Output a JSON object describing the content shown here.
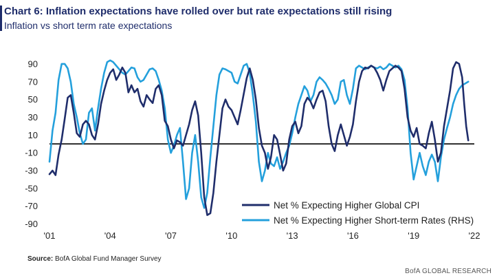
{
  "chart_data": {
    "type": "line",
    "title": "Chart 6: Inflation expectations have rolled over but rate expectations still rising",
    "subtitle": "Inflation vs short term rate expectations",
    "x_tick_labels": [
      "'01",
      "'04",
      "'07",
      "'10",
      "'13",
      "'16",
      "'19",
      "'22"
    ],
    "x_ticks": [
      2001,
      2004,
      2007,
      2010,
      2013,
      2016,
      2019,
      2022
    ],
    "xlim": [
      2001,
      2022
    ],
    "y_ticks": [
      90,
      70,
      50,
      30,
      10,
      -10,
      -30,
      -50,
      -70,
      -90
    ],
    "ylim": [
      -95,
      100
    ],
    "zero_line": 0,
    "legend_position": "bottom-right",
    "series": [
      {
        "name": "Net % Expecting Higher Global CPI",
        "color": "#1f2d6b",
        "points": [
          [
            2001.0,
            -34
          ],
          [
            2001.15,
            -30
          ],
          [
            2001.3,
            -35
          ],
          [
            2001.45,
            -12
          ],
          [
            2001.6,
            5
          ],
          [
            2001.75,
            28
          ],
          [
            2001.9,
            52
          ],
          [
            2002.05,
            55
          ],
          [
            2002.2,
            35
          ],
          [
            2002.35,
            12
          ],
          [
            2002.5,
            8
          ],
          [
            2002.65,
            22
          ],
          [
            2002.8,
            26
          ],
          [
            2002.95,
            22
          ],
          [
            2003.1,
            10
          ],
          [
            2003.25,
            5
          ],
          [
            2003.4,
            22
          ],
          [
            2003.55,
            45
          ],
          [
            2003.7,
            60
          ],
          [
            2003.85,
            72
          ],
          [
            2004.0,
            80
          ],
          [
            2004.15,
            84
          ],
          [
            2004.3,
            72
          ],
          [
            2004.45,
            78
          ],
          [
            2004.6,
            86
          ],
          [
            2004.75,
            80
          ],
          [
            2004.9,
            58
          ],
          [
            2005.05,
            66
          ],
          [
            2005.2,
            58
          ],
          [
            2005.35,
            62
          ],
          [
            2005.5,
            48
          ],
          [
            2005.65,
            42
          ],
          [
            2005.8,
            55
          ],
          [
            2005.95,
            50
          ],
          [
            2006.1,
            46
          ],
          [
            2006.25,
            62
          ],
          [
            2006.4,
            66
          ],
          [
            2006.55,
            55
          ],
          [
            2006.7,
            26
          ],
          [
            2006.85,
            20
          ],
          [
            2007.0,
            5
          ],
          [
            2007.15,
            -5
          ],
          [
            2007.3,
            4
          ],
          [
            2007.45,
            2
          ],
          [
            2007.6,
            -2
          ],
          [
            2007.75,
            10
          ],
          [
            2007.9,
            22
          ],
          [
            2008.05,
            38
          ],
          [
            2008.2,
            48
          ],
          [
            2008.35,
            32
          ],
          [
            2008.5,
            -10
          ],
          [
            2008.65,
            -60
          ],
          [
            2008.8,
            -80
          ],
          [
            2008.95,
            -78
          ],
          [
            2009.1,
            -55
          ],
          [
            2009.25,
            -20
          ],
          [
            2009.4,
            10
          ],
          [
            2009.55,
            40
          ],
          [
            2009.7,
            50
          ],
          [
            2009.85,
            42
          ],
          [
            2010.0,
            38
          ],
          [
            2010.15,
            30
          ],
          [
            2010.3,
            22
          ],
          [
            2010.45,
            38
          ],
          [
            2010.6,
            56
          ],
          [
            2010.75,
            74
          ],
          [
            2010.9,
            85
          ],
          [
            2011.05,
            72
          ],
          [
            2011.2,
            50
          ],
          [
            2011.35,
            18
          ],
          [
            2011.5,
            -2
          ],
          [
            2011.65,
            -10
          ],
          [
            2011.8,
            -28
          ],
          [
            2011.95,
            -15
          ],
          [
            2012.1,
            10
          ],
          [
            2012.25,
            5
          ],
          [
            2012.4,
            -12
          ],
          [
            2012.55,
            -30
          ],
          [
            2012.7,
            -22
          ],
          [
            2012.85,
            5
          ],
          [
            2013.0,
            20
          ],
          [
            2013.15,
            25
          ],
          [
            2013.3,
            12
          ],
          [
            2013.45,
            20
          ],
          [
            2013.6,
            45
          ],
          [
            2013.75,
            52
          ],
          [
            2013.9,
            48
          ],
          [
            2014.05,
            40
          ],
          [
            2014.2,
            50
          ],
          [
            2014.35,
            58
          ],
          [
            2014.5,
            60
          ],
          [
            2014.65,
            48
          ],
          [
            2014.8,
            20
          ],
          [
            2014.95,
            0
          ],
          [
            2015.1,
            -8
          ],
          [
            2015.25,
            10
          ],
          [
            2015.4,
            22
          ],
          [
            2015.55,
            10
          ],
          [
            2015.7,
            -2
          ],
          [
            2015.85,
            8
          ],
          [
            2016.0,
            22
          ],
          [
            2016.15,
            48
          ],
          [
            2016.3,
            70
          ],
          [
            2016.45,
            82
          ],
          [
            2016.6,
            86
          ],
          [
            2016.75,
            85
          ],
          [
            2016.9,
            88
          ],
          [
            2017.05,
            86
          ],
          [
            2017.2,
            80
          ],
          [
            2017.35,
            72
          ],
          [
            2017.5,
            60
          ],
          [
            2017.65,
            72
          ],
          [
            2017.8,
            82
          ],
          [
            2017.95,
            85
          ],
          [
            2018.1,
            88
          ],
          [
            2018.25,
            86
          ],
          [
            2018.4,
            82
          ],
          [
            2018.55,
            62
          ],
          [
            2018.7,
            30
          ],
          [
            2018.85,
            15
          ],
          [
            2019.0,
            8
          ],
          [
            2019.15,
            18
          ],
          [
            2019.3,
            0
          ],
          [
            2019.45,
            -2
          ],
          [
            2019.6,
            -5
          ],
          [
            2019.75,
            12
          ],
          [
            2019.9,
            25
          ],
          [
            2020.05,
            5
          ],
          [
            2020.2,
            -20
          ],
          [
            2020.35,
            -10
          ],
          [
            2020.5,
            20
          ],
          [
            2020.65,
            40
          ],
          [
            2020.8,
            60
          ],
          [
            2020.95,
            85
          ],
          [
            2021.1,
            92
          ],
          [
            2021.25,
            90
          ],
          [
            2021.4,
            75
          ],
          [
            2021.5,
            45
          ],
          [
            2021.6,
            20
          ],
          [
            2021.7,
            4
          ]
        ]
      },
      {
        "name": "Net % Expecting Higher Short-term Rates (RHS)",
        "color": "#24a0dc",
        "points": [
          [
            2001.0,
            -20
          ],
          [
            2001.15,
            15
          ],
          [
            2001.3,
            35
          ],
          [
            2001.45,
            72
          ],
          [
            2001.6,
            90
          ],
          [
            2001.75,
            90
          ],
          [
            2001.9,
            85
          ],
          [
            2002.05,
            70
          ],
          [
            2002.2,
            45
          ],
          [
            2002.35,
            30
          ],
          [
            2002.5,
            12
          ],
          [
            2002.65,
            0
          ],
          [
            2002.8,
            5
          ],
          [
            2002.95,
            35
          ],
          [
            2003.1,
            40
          ],
          [
            2003.25,
            15
          ],
          [
            2003.4,
            40
          ],
          [
            2003.55,
            62
          ],
          [
            2003.7,
            80
          ],
          [
            2003.85,
            92
          ],
          [
            2004.0,
            94
          ],
          [
            2004.15,
            92
          ],
          [
            2004.3,
            88
          ],
          [
            2004.45,
            84
          ],
          [
            2004.6,
            80
          ],
          [
            2004.75,
            78
          ],
          [
            2004.9,
            82
          ],
          [
            2005.05,
            86
          ],
          [
            2005.2,
            85
          ],
          [
            2005.35,
            75
          ],
          [
            2005.5,
            70
          ],
          [
            2005.65,
            72
          ],
          [
            2005.8,
            78
          ],
          [
            2005.95,
            84
          ],
          [
            2006.1,
            85
          ],
          [
            2006.25,
            82
          ],
          [
            2006.4,
            72
          ],
          [
            2006.55,
            60
          ],
          [
            2006.7,
            40
          ],
          [
            2006.85,
            5
          ],
          [
            2007.0,
            -10
          ],
          [
            2007.15,
            -2
          ],
          [
            2007.3,
            10
          ],
          [
            2007.45,
            18
          ],
          [
            2007.6,
            -20
          ],
          [
            2007.75,
            -62
          ],
          [
            2007.9,
            -50
          ],
          [
            2008.05,
            -10
          ],
          [
            2008.2,
            10
          ],
          [
            2008.35,
            -20
          ],
          [
            2008.5,
            -60
          ],
          [
            2008.65,
            -72
          ],
          [
            2008.8,
            -55
          ],
          [
            2008.95,
            -15
          ],
          [
            2009.1,
            20
          ],
          [
            2009.25,
            55
          ],
          [
            2009.4,
            78
          ],
          [
            2009.55,
            85
          ],
          [
            2009.7,
            84
          ],
          [
            2009.85,
            82
          ],
          [
            2010.0,
            80
          ],
          [
            2010.15,
            70
          ],
          [
            2010.3,
            68
          ],
          [
            2010.45,
            78
          ],
          [
            2010.6,
            88
          ],
          [
            2010.75,
            90
          ],
          [
            2010.9,
            80
          ],
          [
            2011.05,
            55
          ],
          [
            2011.2,
            25
          ],
          [
            2011.35,
            -20
          ],
          [
            2011.5,
            -42
          ],
          [
            2011.65,
            -30
          ],
          [
            2011.8,
            -10
          ],
          [
            2011.95,
            -22
          ],
          [
            2012.1,
            -25
          ],
          [
            2012.25,
            -15
          ],
          [
            2012.4,
            -28
          ],
          [
            2012.55,
            -20
          ],
          [
            2012.7,
            -10
          ],
          [
            2012.85,
            -2
          ],
          [
            2013.0,
            12
          ],
          [
            2013.15,
            30
          ],
          [
            2013.3,
            45
          ],
          [
            2013.45,
            55
          ],
          [
            2013.6,
            65
          ],
          [
            2013.75,
            60
          ],
          [
            2013.9,
            48
          ],
          [
            2014.05,
            55
          ],
          [
            2014.2,
            70
          ],
          [
            2014.35,
            75
          ],
          [
            2014.5,
            72
          ],
          [
            2014.65,
            68
          ],
          [
            2014.8,
            62
          ],
          [
            2014.95,
            55
          ],
          [
            2015.1,
            45
          ],
          [
            2015.25,
            50
          ],
          [
            2015.4,
            70
          ],
          [
            2015.55,
            72
          ],
          [
            2015.7,
            55
          ],
          [
            2015.85,
            45
          ],
          [
            2016.0,
            62
          ],
          [
            2016.15,
            85
          ],
          [
            2016.3,
            88
          ],
          [
            2016.45,
            86
          ],
          [
            2016.6,
            84
          ],
          [
            2016.75,
            86
          ],
          [
            2016.9,
            88
          ],
          [
            2017.05,
            86
          ],
          [
            2017.2,
            85
          ],
          [
            2017.35,
            87
          ],
          [
            2017.5,
            84
          ],
          [
            2017.65,
            86
          ],
          [
            2017.8,
            90
          ],
          [
            2017.95,
            88
          ],
          [
            2018.1,
            86
          ],
          [
            2018.25,
            88
          ],
          [
            2018.4,
            84
          ],
          [
            2018.55,
            72
          ],
          [
            2018.7,
            40
          ],
          [
            2018.85,
            -10
          ],
          [
            2019.0,
            -40
          ],
          [
            2019.15,
            -25
          ],
          [
            2019.3,
            -10
          ],
          [
            2019.45,
            -25
          ],
          [
            2019.6,
            -35
          ],
          [
            2019.75,
            -20
          ],
          [
            2019.9,
            -12
          ],
          [
            2020.05,
            -20
          ],
          [
            2020.2,
            -42
          ],
          [
            2020.35,
            -15
          ],
          [
            2020.5,
            5
          ],
          [
            2020.65,
            18
          ],
          [
            2020.8,
            30
          ],
          [
            2020.95,
            45
          ],
          [
            2021.1,
            55
          ],
          [
            2021.25,
            62
          ],
          [
            2021.4,
            66
          ],
          [
            2021.55,
            68
          ],
          [
            2021.7,
            70
          ]
        ]
      }
    ]
  },
  "source": {
    "label": "Source:",
    "text": "BofA Global Fund Manager Survey"
  },
  "footer": "BofA GLOBAL RESEARCH"
}
